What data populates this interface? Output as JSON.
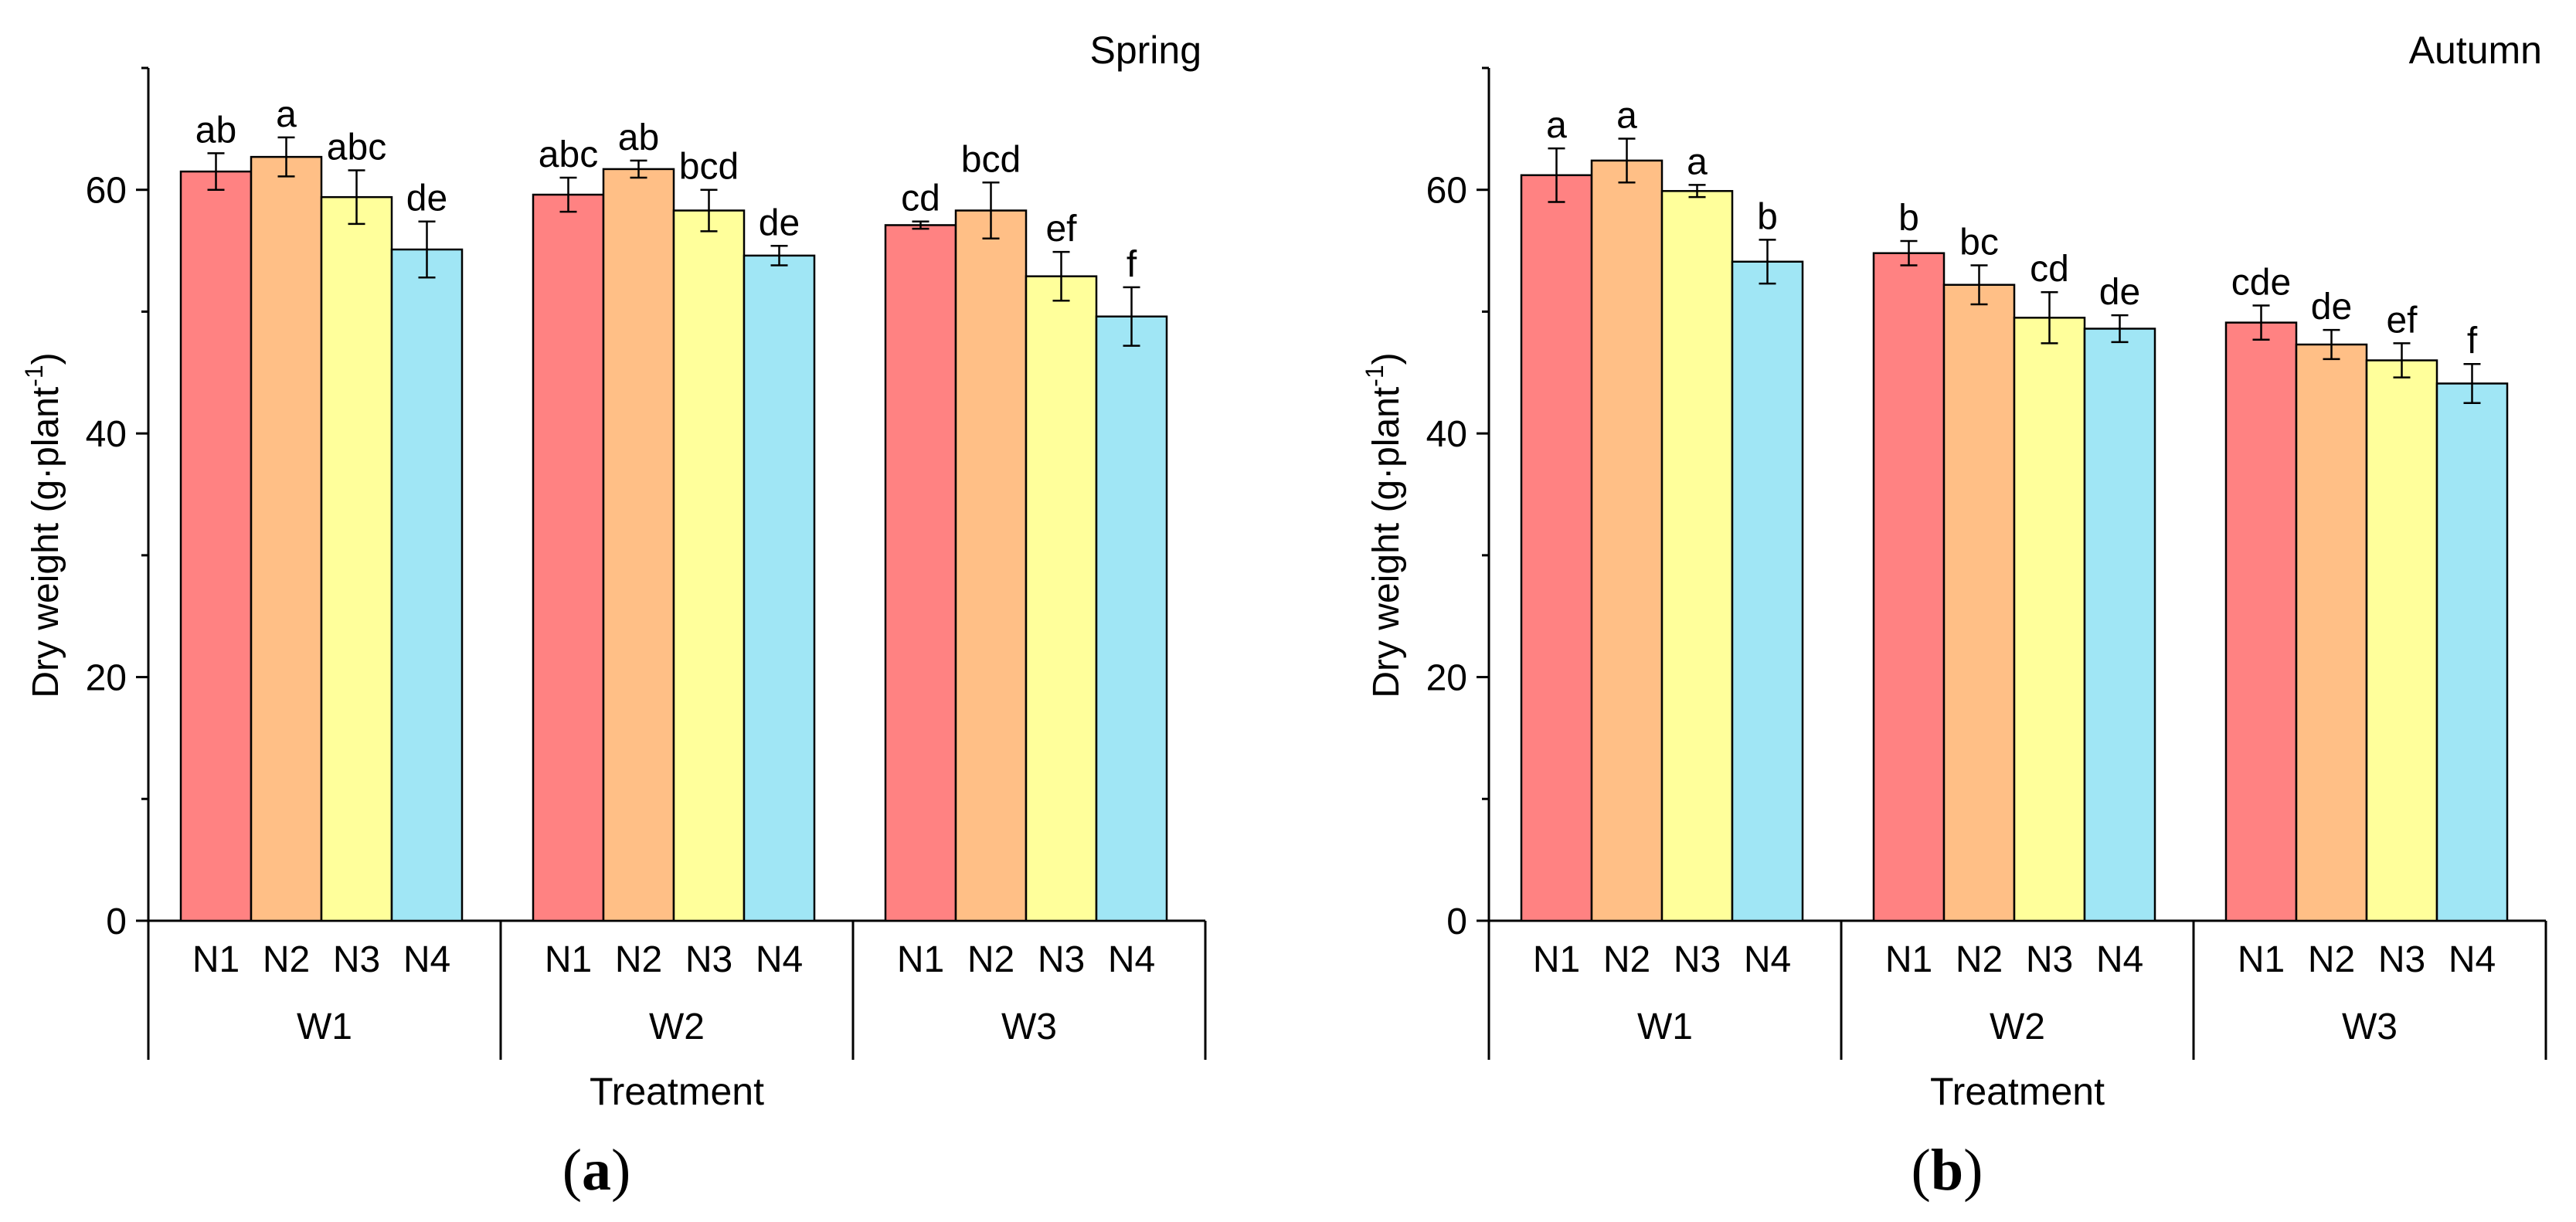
{
  "chart_data": [
    {
      "type": "bar",
      "panel_label": "a",
      "season": "Spring",
      "ylabel_main": "Dry weight (g·plant",
      "ylabel_sup": "-1",
      "ylabel_close": ")",
      "xlabel": "Treatment",
      "ylim": [
        0,
        70
      ],
      "yticks": [
        0,
        20,
        40,
        60
      ],
      "groups": [
        "W1",
        "W2",
        "W3"
      ],
      "categories": [
        "N1",
        "N2",
        "N3",
        "N4"
      ],
      "colors": [
        "#ff8282",
        "#ffbf86",
        "#ffff9b",
        "#a0e6f5"
      ],
      "series": [
        {
          "group": "W1",
          "values": [
            61.5,
            62.7,
            59.4,
            55.1
          ],
          "errors": [
            1.5,
            1.6,
            2.2,
            2.3
          ],
          "letters": [
            "ab",
            "a",
            "abc",
            "de"
          ]
        },
        {
          "group": "W2",
          "values": [
            59.6,
            61.7,
            58.3,
            54.6
          ],
          "errors": [
            1.4,
            0.7,
            1.7,
            0.8
          ],
          "letters": [
            "abc",
            "ab",
            "bcd",
            "de"
          ]
        },
        {
          "group": "W3",
          "values": [
            57.1,
            58.3,
            52.9,
            49.6
          ],
          "errors": [
            0.3,
            2.3,
            2.0,
            2.4
          ],
          "letters": [
            "cd",
            "bcd",
            "ef",
            "f"
          ]
        }
      ]
    },
    {
      "type": "bar",
      "panel_label": "b",
      "season": "Autumn",
      "ylabel_main": "Dry weight (g·plant",
      "ylabel_sup": "-1",
      "ylabel_close": ")",
      "xlabel": "Treatment",
      "ylim": [
        0,
        70
      ],
      "yticks": [
        0,
        20,
        40,
        60
      ],
      "groups": [
        "W1",
        "W2",
        "W3"
      ],
      "categories": [
        "N1",
        "N2",
        "N3",
        "N4"
      ],
      "colors": [
        "#ff8282",
        "#ffbf86",
        "#ffff9b",
        "#a0e6f5"
      ],
      "series": [
        {
          "group": "W1",
          "values": [
            61.2,
            62.4,
            59.9,
            54.1
          ],
          "errors": [
            2.2,
            1.8,
            0.5,
            1.8
          ],
          "letters": [
            "a",
            "a",
            "a",
            "b"
          ]
        },
        {
          "group": "W2",
          "values": [
            54.8,
            52.2,
            49.5,
            48.6
          ],
          "errors": [
            1.0,
            1.6,
            2.1,
            1.1
          ],
          "letters": [
            "b",
            "bc",
            "cd",
            "de"
          ]
        },
        {
          "group": "W3",
          "values": [
            49.1,
            47.3,
            46.0,
            44.1
          ],
          "errors": [
            1.4,
            1.2,
            1.4,
            1.6
          ],
          "letters": [
            "cde",
            "de",
            "ef",
            "f"
          ]
        }
      ]
    }
  ]
}
